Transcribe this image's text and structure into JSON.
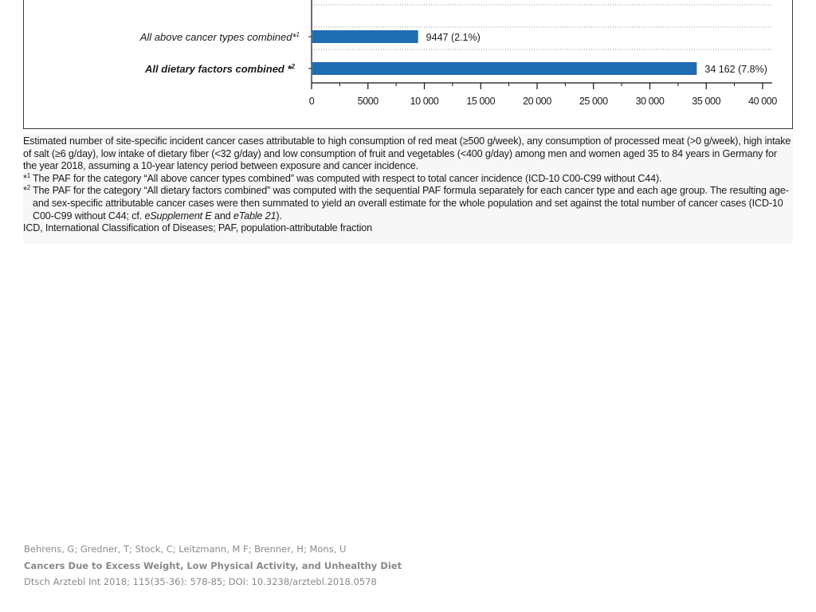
{
  "chart_data": {
    "type": "bar",
    "orientation": "horizontal",
    "categories": [
      {
        "label": "All above cancer types combined",
        "marker": "*1",
        "bold": false
      },
      {
        "label": "All dietary factors combined",
        "marker": "*2",
        "bold": true
      }
    ],
    "values": [
      9447,
      34162
    ],
    "data_labels": [
      "9447 (2.1%)",
      "34 162 (7.8%)"
    ],
    "xlim": [
      0,
      40000
    ],
    "xticks": [
      0,
      5000,
      10000,
      15000,
      20000,
      25000,
      30000,
      35000,
      40000
    ],
    "xtick_labels": [
      "0",
      "5000",
      "10 000",
      "15 000",
      "20 000",
      "25 000",
      "30 000",
      "35 000",
      "40 000"
    ],
    "bar_color": "#1f6db3",
    "grid": "dotted horizontal separators"
  },
  "caption": {
    "description": "Estimated number of site-specific incident cancer cases attributable to high consumption of red meat (≥500 g/week), any consumption of processed meat (>0 g/week), high intake of salt (≥6 g/day), low intake of dietary fiber (<32 g/day) and low consumption of fruit and vegetables (<400 g/day) among men and women aged 35 to 84 years in Germany for the year 2018, assuming a 10-year latency period between exposure and cancer incidence.",
    "footnote1_mark": "*",
    "footnote1_sup": "1",
    "footnote1": "The PAF for the category “All above cancer types combined” was computed with respect to total cancer incidence (ICD-10 C00-C99 without C44).",
    "footnote2_mark": "*",
    "footnote2_sup": "2",
    "footnote2_a": "The PAF for the category “All dietary factors combined” was computed with the sequential PAF formula separately for each cancer type and each age group. The resulting age- and sex-specific attributable cancer cases were then summated to yield an overall estimate for the whole population and set against the total number of cancer cases (ICD-10 C00-C99 without C44; cf. ",
    "footnote2_e1": "e",
    "footnote2_supp": "Supplement E",
    "footnote2_and": " and ",
    "footnote2_e2": "e",
    "footnote2_table": "Table 21",
    "footnote2_end": ").",
    "abbreviations": "ICD, International Classification of Diseases; PAF, population-attributable fraction"
  },
  "citation": {
    "authors": "Behrens, G; Gredner, T; Stock, C; Leitzmann, M F; Brenner, H; Mons, U",
    "title": "Cancers Due to Excess Weight, Low Physical Activity, and Unhealthy Diet",
    "journal": "Dtsch Arztebl Int 2018; 115(35-36): 578-85; DOI: 10.3238/arztebl.2018.0578"
  }
}
